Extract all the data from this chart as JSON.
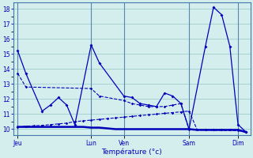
{
  "background_color": "#d4eeee",
  "grid_color": "#a0cccc",
  "line_color": "#0000bb",
  "xlabel": "Température (°c)",
  "xlabel_color": "#0000bb",
  "ylabel_color": "#0000bb",
  "ylim": [
    9.6,
    18.4
  ],
  "yticks": [
    10,
    11,
    12,
    13,
    14,
    15,
    16,
    17,
    18
  ],
  "x_tick_labels": [
    "Jeu",
    "Lun",
    "Ven",
    "Sam",
    "Dim"
  ],
  "x_tick_positions": [
    0.5,
    9.5,
    13.5,
    21.5,
    27.5
  ],
  "xlim": [
    0,
    29
  ],
  "line1_x": [
    0.5,
    1.5,
    3.5,
    4.5,
    5.5,
    6.5,
    7.5,
    9.5,
    10.5,
    13.5,
    14.5,
    15.5,
    16.5,
    17.5,
    18.5,
    19.5,
    20.5,
    21.5,
    23.5,
    24.5,
    25.5,
    26.5,
    27.5,
    28.5
  ],
  "line1_y": [
    15.2,
    13.7,
    11.2,
    11.6,
    12.1,
    11.6,
    10.3,
    15.6,
    14.4,
    12.2,
    12.1,
    11.7,
    11.6,
    11.5,
    12.4,
    12.2,
    11.7,
    10.0,
    15.5,
    18.1,
    17.6,
    15.5,
    10.3,
    9.8
  ],
  "line2_x": [
    0.5,
    1.5,
    9.5,
    10.5,
    13.5,
    14.5,
    15.5,
    16.5,
    17.5,
    18.5,
    19.5,
    20.5,
    21.5,
    27.5,
    28.5
  ],
  "line2_y": [
    13.7,
    12.8,
    12.7,
    12.2,
    11.9,
    11.7,
    11.6,
    11.5,
    11.5,
    11.5,
    11.6,
    11.7,
    9.95,
    9.9,
    9.8
  ],
  "line3_x": [
    0.5,
    1.5,
    2.5,
    3.5,
    4.5,
    5.5,
    6.5,
    7.5,
    8.5,
    9.5,
    10.5,
    11.5,
    12.5,
    13.5,
    14.5,
    15.5,
    16.5,
    17.5,
    18.5,
    19.5,
    20.5,
    21.5,
    22.5,
    23.5,
    24.5,
    25.5,
    26.5,
    27.5,
    28.5
  ],
  "line3_y": [
    10.15,
    10.15,
    10.15,
    10.15,
    10.15,
    10.15,
    10.15,
    10.15,
    10.15,
    10.1,
    10.1,
    10.05,
    10.0,
    10.0,
    10.0,
    10.0,
    10.0,
    10.0,
    10.0,
    10.0,
    10.0,
    10.0,
    9.95,
    9.95,
    9.95,
    9.95,
    9.95,
    9.95,
    9.8
  ],
  "line4_x": [
    0.5,
    1.5,
    2.5,
    3.5,
    4.5,
    5.5,
    6.5,
    7.5,
    8.5,
    9.5,
    10.5,
    11.5,
    12.5,
    13.5,
    14.5,
    15.5,
    16.5,
    17.5,
    18.5,
    19.5,
    20.5,
    21.5,
    22.5,
    23.5,
    24.5,
    25.5,
    26.5,
    27.5,
    28.5
  ],
  "line4_y": [
    10.15,
    10.2,
    10.22,
    10.25,
    10.3,
    10.35,
    10.4,
    10.5,
    10.55,
    10.6,
    10.65,
    10.7,
    10.75,
    10.8,
    10.85,
    10.9,
    10.95,
    11.0,
    11.05,
    11.1,
    11.15,
    11.2,
    9.95,
    9.95,
    9.95,
    9.95,
    9.95,
    9.95,
    9.8
  ],
  "vlines": [
    0.5,
    9.5,
    13.5,
    21.5,
    27.5
  ]
}
